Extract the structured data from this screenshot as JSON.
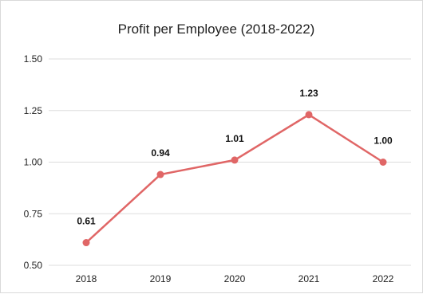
{
  "chart_data": {
    "type": "line",
    "title": "Profit per Employee (2018-2022)",
    "xlabel": "",
    "ylabel": "",
    "categories": [
      "2018",
      "2019",
      "2020",
      "2021",
      "2022"
    ],
    "series": [
      {
        "values": [
          0.61,
          0.94,
          1.01,
          1.23,
          1.0
        ],
        "color": "#e06666"
      }
    ],
    "data_labels": [
      "0.61",
      "0.94",
      "1.01",
      "1.23",
      "1.00"
    ],
    "ylim": [
      0.5,
      1.5
    ],
    "y_ticks": [
      "0.50",
      "0.75",
      "1.00",
      "1.25",
      "1.50"
    ],
    "grid": true,
    "legend": "none",
    "gridline_color": "#dddddd"
  }
}
